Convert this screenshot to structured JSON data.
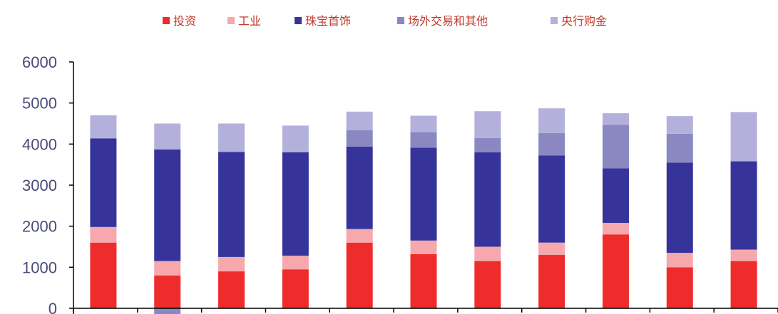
{
  "chart_data": {
    "type": "bar",
    "stacked": true,
    "categories": [
      "",
      "",
      "",
      "",
      "",
      "",
      "",
      "",
      "",
      "",
      ""
    ],
    "ylim": [
      0,
      6000
    ],
    "yticks": [
      "0",
      "1000",
      "2000",
      "3000",
      "4000",
      "5000",
      "6000"
    ],
    "grid": false,
    "legend_position": "top",
    "series": [
      {
        "name": "投资",
        "color": "#ee2c2c",
        "values": [
          1600,
          800,
          900,
          950,
          1600,
          1320,
          1150,
          1300,
          1800,
          1000,
          1150
        ]
      },
      {
        "name": "工业",
        "color": "#f6a8ad",
        "values": [
          380,
          350,
          350,
          330,
          330,
          330,
          350,
          300,
          280,
          350,
          280
        ]
      },
      {
        "name": "珠宝首饰",
        "color": "#36349a",
        "values": [
          2160,
          2720,
          2560,
          2520,
          2010,
          2260,
          2300,
          2120,
          1330,
          2200,
          2150
        ]
      },
      {
        "name": "场外交易和其他",
        "color": "#8b87c0",
        "values": [
          0,
          -150,
          0,
          0,
          400,
          380,
          350,
          550,
          1060,
          700,
          0
        ]
      },
      {
        "name": "央行购金",
        "color": "#b3b1db",
        "values": [
          560,
          630,
          690,
          650,
          450,
          400,
          650,
          600,
          280,
          430,
          1200
        ]
      }
    ]
  }
}
